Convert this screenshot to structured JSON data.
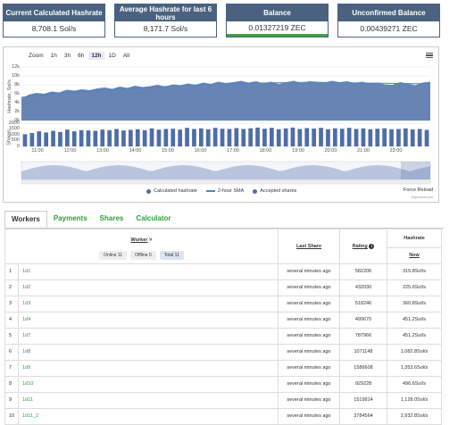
{
  "cards": [
    {
      "title": "Current Calculated Hashrate",
      "value": "8,708.1 Sol/s"
    },
    {
      "title": "Average Hashrate for last 6 hours",
      "value": "8,171.7 Sol/s"
    },
    {
      "title": "Balance",
      "value": "0.01327219 ZEC"
    },
    {
      "title": "Unconfirmed Balance",
      "value": "0.00439271 ZEC"
    }
  ],
  "chart": {
    "zoom_label": "Zoom",
    "zoom_options": [
      "1h",
      "3h",
      "6h",
      "12h",
      "1D",
      "All"
    ],
    "zoom_selected": "12h",
    "hashrate_axis_title": "Hashrate, Sol/s",
    "shares_axis_title": "Shares",
    "hashrate_ticks": [
      "12k",
      "10k",
      "8k",
      "6k",
      "4k",
      "2k",
      "0k"
    ],
    "shares_ticks": [
      "2000",
      "1500",
      "1000",
      "500",
      "0"
    ],
    "x_ticks": [
      "11:00",
      "12:00",
      "13:00",
      "14:00",
      "15:00",
      "16:00",
      "17:00",
      "18:00",
      "19:00",
      "20:00",
      "21:00",
      "22:00"
    ],
    "legend": [
      "Calculated hashrate",
      "2-hour SMA",
      "Accepted shares"
    ],
    "force_reload": "Force Reload",
    "credits": "Highcharts.com",
    "colors": {
      "area": "#4e6ea7",
      "sma": "#4a86c8",
      "bars": "#4e6ea7"
    }
  },
  "chart_data": {
    "type": "area",
    "hashrate_series_name": "Calculated hashrate",
    "hashrate_ylim": [
      0,
      12000
    ],
    "hashrate": [
      5000,
      5800,
      6200,
      6000,
      6500,
      6300,
      6900,
      6700,
      7000,
      6800,
      7200,
      7400,
      7100,
      7600,
      7300,
      7800,
      7500,
      7700,
      8000,
      7600,
      8100,
      7900,
      8300,
      8000,
      8500,
      8200,
      8700,
      8400,
      8600,
      8900,
      8500,
      8800,
      8300,
      8700,
      8200,
      8600,
      8900,
      8400,
      8800,
      8700,
      8500,
      8900,
      8600,
      8800,
      8400,
      8700,
      8300,
      8500,
      8100,
      8000,
      8600,
      8300,
      7900,
      8500,
      8700
    ],
    "sma_series_name": "2-hour SMA",
    "sma": [
      5200,
      5600,
      5900,
      6200,
      6500,
      6800,
      7000,
      7200,
      7400,
      7600,
      7800,
      7950,
      8100,
      8200,
      8300,
      8400,
      8450,
      8500,
      8550,
      8550,
      8500,
      8450,
      8400,
      8350,
      8300,
      8250,
      8300
    ],
    "shares_series_name": "Accepted shares",
    "shares_ylim": [
      0,
      2000
    ],
    "shares": [
      1050,
      1150,
      1300,
      1200,
      1350,
      1250,
      1450,
      1300,
      1400,
      1380,
      1350,
      1450,
      1400,
      1500,
      1380,
      1420,
      1480,
      1400,
      1550,
      1450,
      1500,
      1520,
      1450,
      1600,
      1500,
      1550,
      1480,
      1600,
      1520,
      1500,
      1580,
      1500,
      1560,
      1620,
      1520,
      1600,
      1480,
      1550,
      1620,
      1500,
      1580,
      1540,
      1600,
      1480,
      1560,
      1520,
      1600,
      1500,
      1550,
      1480,
      1520,
      1560,
      1480,
      1500,
      1550,
      1460,
      1500,
      1420
    ],
    "x_range": [
      "10:40",
      "22:40"
    ]
  },
  "tabs": [
    "Workers",
    "Payments",
    "Shares",
    "Calculator"
  ],
  "table": {
    "worker_header": "Worker",
    "online_chip": "Online 11",
    "offline_chip": "Offline 0",
    "total_chip": "Total 11",
    "last_share_header": "Last Share",
    "rating_header": "Rating",
    "hashrate_header": "Hashrate",
    "hashrate_sub": "Now",
    "rows": [
      {
        "n": "1",
        "name": "1d1",
        "last": "several minutes ago",
        "rating": "582206",
        "hr": "315.8Sol/s"
      },
      {
        "n": "2",
        "name": "1d2",
        "last": "several minutes ago",
        "rating": "432030",
        "hr": "225.6Sol/s"
      },
      {
        "n": "3",
        "name": "1d3",
        "last": "several minutes ago",
        "rating": "518246",
        "hr": "360.8Sol/s"
      },
      {
        "n": "4",
        "name": "1d4",
        "last": "several minutes ago",
        "rating": "499670",
        "hr": "451.2Sol/s"
      },
      {
        "n": "5",
        "name": "1d7",
        "last": "several minutes ago",
        "rating": "787966",
        "hr": "451.2Sol/s"
      },
      {
        "n": "6",
        "name": "1d8",
        "last": "several minutes ago",
        "rating": "1071148",
        "hr": "1,082.8Sol/s"
      },
      {
        "n": "7",
        "name": "1d9",
        "last": "several minutes ago",
        "rating": "1586608",
        "hr": "1,353.6Sol/s"
      },
      {
        "n": "8",
        "name": "1d10",
        "last": "several minutes ago",
        "rating": "929228",
        "hr": "496.6Sol/s"
      },
      {
        "n": "9",
        "name": "1d11",
        "last": "several minutes ago",
        "rating": "1519814",
        "hr": "1,128.0Sol/s"
      },
      {
        "n": "10",
        "name": "1d11_2",
        "last": "several minutes ago",
        "rating": "3784564",
        "hr": "2,932.8Sol/s"
      }
    ]
  }
}
